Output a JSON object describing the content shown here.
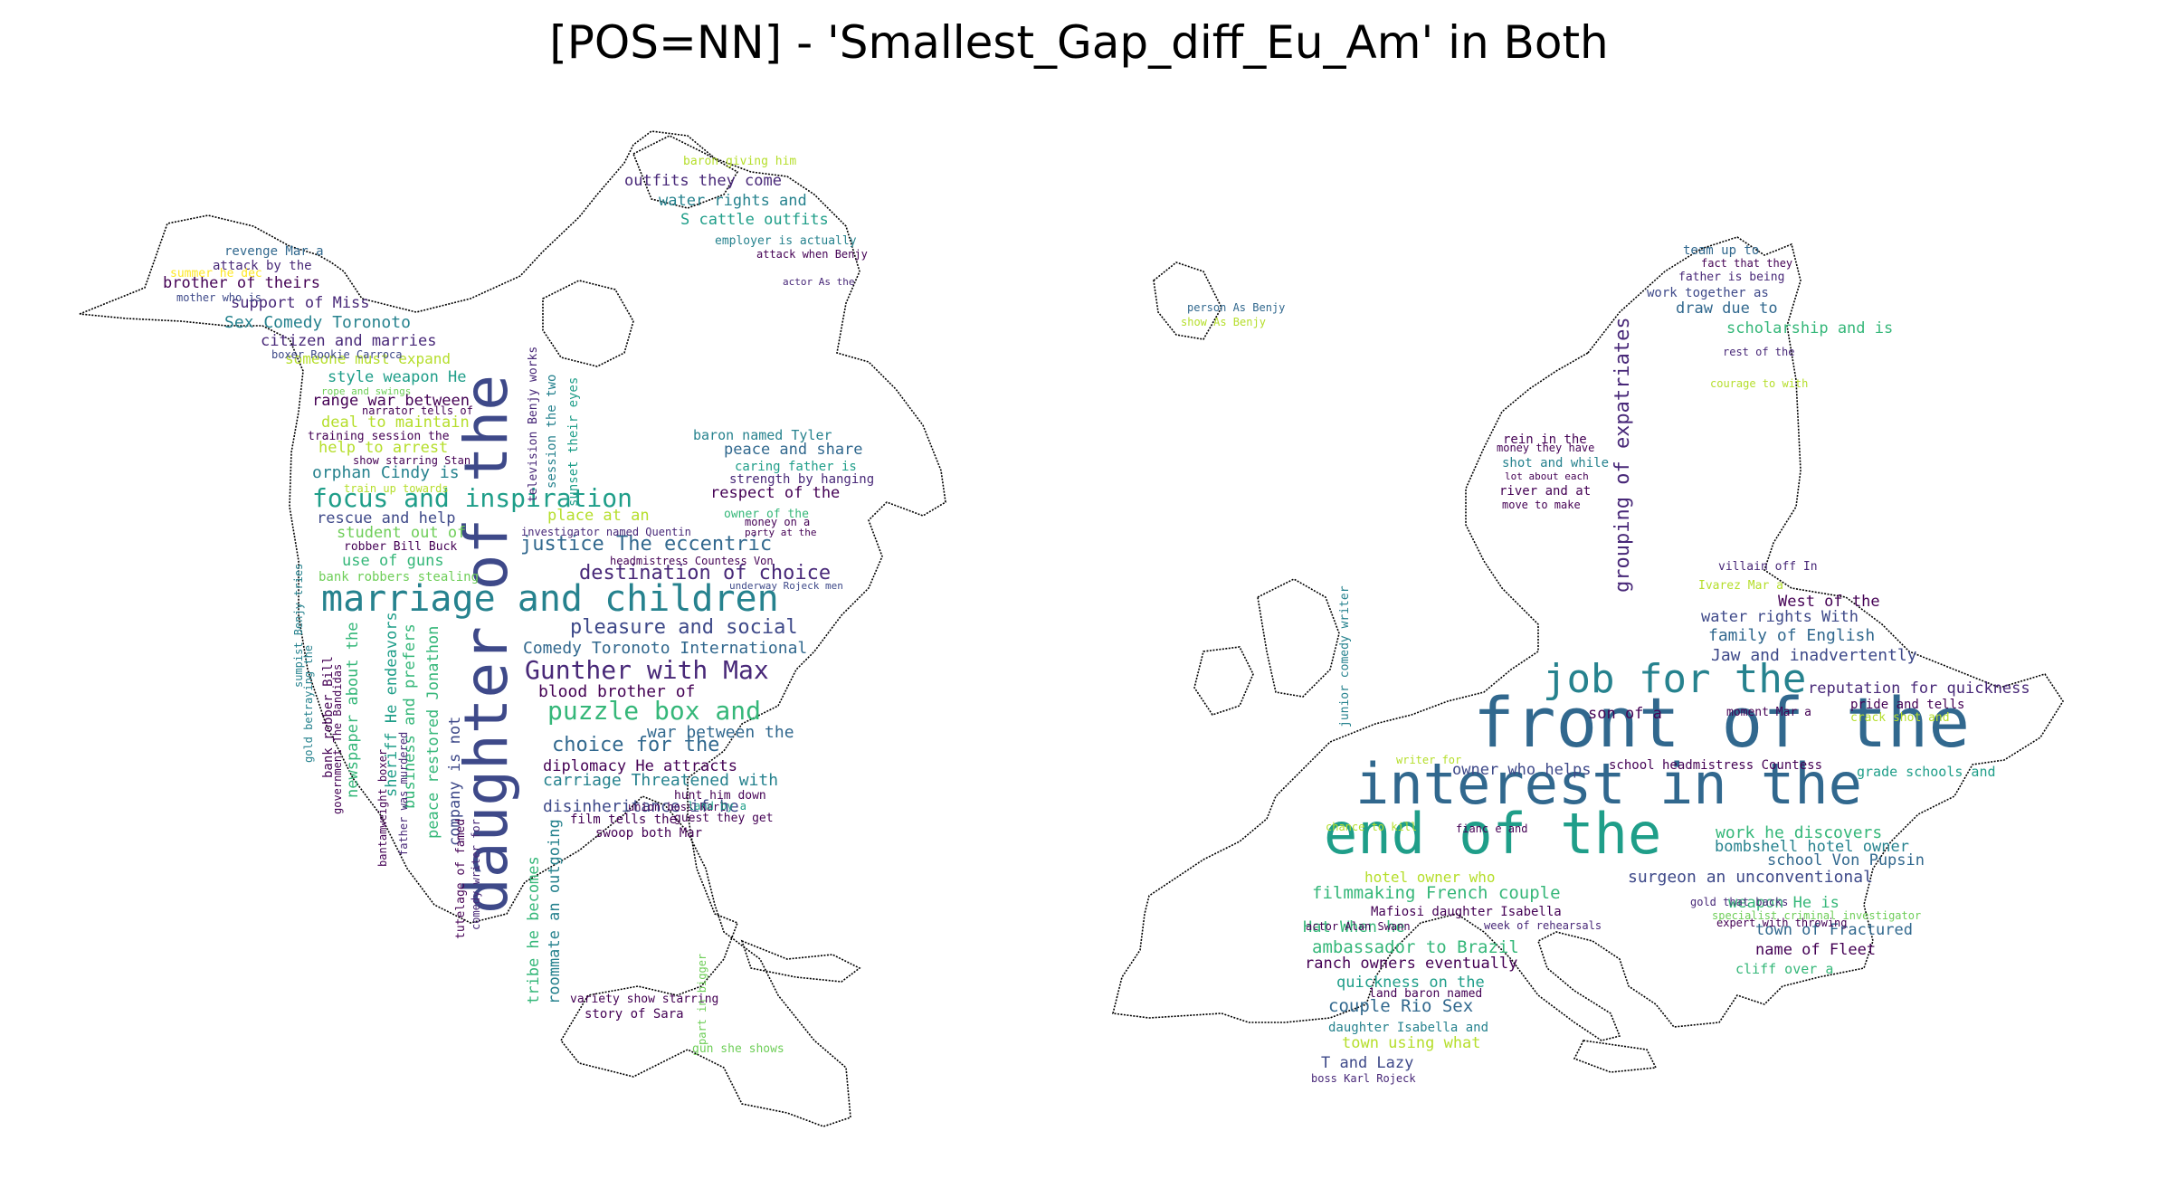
{
  "title": "[POS=NN] - 'Smallest_Gap_diff_Eu_Am' in Both",
  "palette": [
    "#440154",
    "#482878",
    "#3e4989",
    "#31688e",
    "#26828e",
    "#1f9e89",
    "#35b779",
    "#6ece58",
    "#b5de2b",
    "#fde725"
  ],
  "america": {
    "shape": "north-america-outline",
    "words": [
      {
        "t": "daughter of the",
        "c": "#3e4989"
      },
      {
        "t": "marriage and children",
        "c": "#26828e"
      },
      {
        "t": "focus and inspiration",
        "c": "#1f9e89"
      },
      {
        "t": "Gunther with Max",
        "c": "#482878"
      },
      {
        "t": "puzzle box and",
        "c": "#35b779"
      },
      {
        "t": "justice The eccentric",
        "c": "#31688e"
      },
      {
        "t": "destination of choice",
        "c": "#482878"
      },
      {
        "t": "pleasure and social",
        "c": "#3e4989"
      },
      {
        "t": "choice for the",
        "c": "#31688e"
      },
      {
        "t": "carriage Threatened with",
        "c": "#26828e"
      },
      {
        "t": "disinheritance if he",
        "c": "#3e4989"
      },
      {
        "t": "blood brother of",
        "c": "#440154"
      },
      {
        "t": "war between the",
        "c": "#31688e"
      },
      {
        "t": "diplomacy He attracts",
        "c": "#440154"
      },
      {
        "t": "Comedy Toronoto International",
        "c": "#31688e"
      },
      {
        "t": "orphan Cindy is",
        "c": "#26828e"
      },
      {
        "t": "rescue and help",
        "c": "#3e4989"
      },
      {
        "t": "student out of",
        "c": "#6ece58"
      },
      {
        "t": "place at an",
        "c": "#b5de2b"
      },
      {
        "t": "use of guns",
        "c": "#35b779"
      },
      {
        "t": "help to arrest",
        "c": "#b5de2b"
      },
      {
        "t": "deal to maintain",
        "c": "#b5de2b"
      },
      {
        "t": "range war between",
        "c": "#440154"
      },
      {
        "t": "style weapon He",
        "c": "#1f9e89"
      },
      {
        "t": "someone must expand",
        "c": "#b5de2b"
      },
      {
        "t": "citizen and marries",
        "c": "#482878"
      },
      {
        "t": "Sex Comedy Toronoto",
        "c": "#26828e"
      },
      {
        "t": "support of Miss",
        "c": "#482878"
      },
      {
        "t": "brother of theirs",
        "c": "#440154"
      },
      {
        "t": "revenge Mar a",
        "c": "#31688e"
      },
      {
        "t": "attack by the",
        "c": "#482878"
      },
      {
        "t": "summer he dec",
        "c": "#fde725"
      },
      {
        "t": "mother who is",
        "c": "#3e4989"
      },
      {
        "t": "boxer Rookie Carroca",
        "c": "#3e4989"
      },
      {
        "t": "rope and swings",
        "c": "#6ece58"
      },
      {
        "t": "narrator tells of",
        "c": "#440154"
      },
      {
        "t": "training session the",
        "c": "#440154"
      },
      {
        "t": "show starring Stan",
        "c": "#440154"
      },
      {
        "t": "train up towards",
        "c": "#b5de2b"
      },
      {
        "t": "investigator named Quentin",
        "c": "#482878"
      },
      {
        "t": "headmistress Countess Von",
        "c": "#440154"
      },
      {
        "t": "robber Bill Buck",
        "c": "#440154"
      },
      {
        "t": "bank robbers stealing",
        "c": "#6ece58"
      },
      {
        "t": "outfits they come",
        "c": "#482878"
      },
      {
        "t": "water rights and",
        "c": "#26828e"
      },
      {
        "t": "S cattle outfits",
        "c": "#1f9e89"
      },
      {
        "t": "baron giving him",
        "c": "#b5de2b"
      },
      {
        "t": "employer is actually",
        "c": "#26828e"
      },
      {
        "t": "attack when Benjy",
        "c": "#440154"
      },
      {
        "t": "actor As the",
        "c": "#482878"
      },
      {
        "t": "baron named Tyler",
        "c": "#26828e"
      },
      {
        "t": "peace and share",
        "c": "#31688e"
      },
      {
        "t": "caring father is",
        "c": "#1f9e89"
      },
      {
        "t": "strength by hanging",
        "c": "#482878"
      },
      {
        "t": "respect of the",
        "c": "#440154"
      },
      {
        "t": "owner of the",
        "c": "#35b779"
      },
      {
        "t": "money on a",
        "c": "#440154"
      },
      {
        "t": "party at the",
        "c": "#440154"
      },
      {
        "t": "underway Rojeck men",
        "c": "#3e4989"
      },
      {
        "t": "film tells the",
        "c": "#440154"
      },
      {
        "t": "swoop both Mar",
        "c": "#440154"
      },
      {
        "t": "guest they get",
        "c": "#440154"
      },
      {
        "t": "hunt him down",
        "c": "#440154"
      },
      {
        "t": "union boss Karl",
        "c": "#440154"
      },
      {
        "t": "land by a",
        "c": "#1f9e89"
      },
      {
        "t": "variety show starring",
        "c": "#440154"
      },
      {
        "t": "story of Sara",
        "c": "#440154"
      },
      {
        "t": "gun she shows",
        "c": "#6ece58"
      },
      {
        "t": "part in bigger",
        "c": "#6ece58"
      },
      {
        "t": "tribe he becomes",
        "c": "#35b779"
      },
      {
        "t": "roommate an outgoing",
        "c": "#26828e"
      },
      {
        "t": "company is not",
        "c": "#3e4989"
      },
      {
        "t": "peace restored Jonathon",
        "c": "#35b779"
      },
      {
        "t": "business and prefers",
        "c": "#35b779"
      },
      {
        "t": "sheriff He endeavors",
        "c": "#1f9e89"
      },
      {
        "t": "newspaper about the",
        "c": "#35b779"
      },
      {
        "t": "tutelage of famed",
        "c": "#440154"
      },
      {
        "t": "comedy writer for",
        "c": "#482878"
      },
      {
        "t": "television Benjy works",
        "c": "#482878"
      },
      {
        "t": "session the two",
        "c": "#26828e"
      },
      {
        "t": "sunset their eyes",
        "c": "#1f9e89"
      },
      {
        "t": "bantamweight boxer",
        "c": "#440154"
      },
      {
        "t": "father was murdered",
        "c": "#482878"
      },
      {
        "t": "government The Bandidas",
        "c": "#440154"
      },
      {
        "t": "bank robber Bill",
        "c": "#440154"
      },
      {
        "t": "gold betraying the",
        "c": "#26828e"
      },
      {
        "t": "sumpist Benjy tries",
        "c": "#26828e"
      }
    ]
  },
  "europe": {
    "shape": "europe-outline",
    "words": [
      {
        "t": "front of the",
        "c": "#31688e"
      },
      {
        "t": "interest in the",
        "c": "#31688e"
      },
      {
        "t": "end of the",
        "c": "#1f9e89"
      },
      {
        "t": "job for the",
        "c": "#26828e"
      },
      {
        "t": "grouping of expatriates",
        "c": "#482878"
      },
      {
        "t": "reputation for quickness",
        "c": "#482878"
      },
      {
        "t": "family of English",
        "c": "#31688e"
      },
      {
        "t": "West of the",
        "c": "#440154"
      },
      {
        "t": "water rights With",
        "c": "#3e4989"
      },
      {
        "t": "Jaw and inadvertently",
        "c": "#3e4989"
      },
      {
        "t": "owner who helps",
        "c": "#3e4989"
      },
      {
        "t": "son of a",
        "c": "#440154"
      },
      {
        "t": "moment Mar a",
        "c": "#440154"
      },
      {
        "t": "work he discovers",
        "c": "#35b779"
      },
      {
        "t": "bombshell hotel owner",
        "c": "#26828e"
      },
      {
        "t": "school Von Pupsin",
        "c": "#31688e"
      },
      {
        "t": "surgeon an unconventional",
        "c": "#3e4989"
      },
      {
        "t": "filmmaking French couple",
        "c": "#35b779"
      },
      {
        "t": "hotel owner who",
        "c": "#b5de2b"
      },
      {
        "t": "Hat When he",
        "c": "#35b779"
      },
      {
        "t": "ambassador to Brazil",
        "c": "#35b779"
      },
      {
        "t": "ranch owners eventually",
        "c": "#440154"
      },
      {
        "t": "quickness on the",
        "c": "#1f9e89"
      },
      {
        "t": "couple Rio Sex",
        "c": "#31688e"
      },
      {
        "t": "daughter Isabella and",
        "c": "#26828e"
      },
      {
        "t": "town using what",
        "c": "#b5de2b"
      },
      {
        "t": "T and Lazy",
        "c": "#3e4989"
      },
      {
        "t": "boss Karl Rojeck",
        "c": "#482878"
      },
      {
        "t": "land baron named",
        "c": "#440154"
      },
      {
        "t": "actor Alan Swann",
        "c": "#440154"
      },
      {
        "t": "Mafiosi daughter Isabella",
        "c": "#440154"
      },
      {
        "t": "week of rehearsals",
        "c": "#482878"
      },
      {
        "t": "weapon He is",
        "c": "#35b779"
      },
      {
        "t": "town of Fractured",
        "c": "#31688e"
      },
      {
        "t": "name of Fleet",
        "c": "#440154"
      },
      {
        "t": "cliff over a",
        "c": "#35b779"
      },
      {
        "t": "grade schools and",
        "c": "#1f9e89"
      },
      {
        "t": "pride and tells",
        "c": "#440154"
      },
      {
        "t": "crack shot and",
        "c": "#b5de2b"
      },
      {
        "t": "team up to",
        "c": "#31688e"
      },
      {
        "t": "fact that they",
        "c": "#440154"
      },
      {
        "t": "father is being",
        "c": "#482878"
      },
      {
        "t": "work together as",
        "c": "#3e4989"
      },
      {
        "t": "draw due to",
        "c": "#31688e"
      },
      {
        "t": "scholarship and is",
        "c": "#35b779"
      },
      {
        "t": "rest of the",
        "c": "#482878"
      },
      {
        "t": "courage to with",
        "c": "#b5de2b"
      },
      {
        "t": "rein in the",
        "c": "#440154"
      },
      {
        "t": "money they have",
        "c": "#440154"
      },
      {
        "t": "shot and while",
        "c": "#26828e"
      },
      {
        "t": "lot about each",
        "c": "#440154"
      },
      {
        "t": "river and at",
        "c": "#440154"
      },
      {
        "t": "move to make",
        "c": "#440154"
      },
      {
        "t": "villain off In",
        "c": "#482878"
      },
      {
        "t": "Ivarez Mar a",
        "c": "#b5de2b"
      },
      {
        "t": "school headmistress Countess",
        "c": "#440154"
      },
      {
        "t": "expert with throwing",
        "c": "#440154"
      },
      {
        "t": "gold that backs",
        "c": "#482878"
      },
      {
        "t": "specialist criminal investigator",
        "c": "#6ece58"
      },
      {
        "t": "junior comedy writer",
        "c": "#26828e"
      },
      {
        "t": "person As Benjy",
        "c": "#31688e"
      },
      {
        "t": "show As Benjy",
        "c": "#b5de2b"
      },
      {
        "t": "fianc e and",
        "c": "#440154"
      },
      {
        "t": "chance to kill",
        "c": "#b5de2b"
      },
      {
        "t": "writer for",
        "c": "#b5de2b"
      }
    ]
  }
}
